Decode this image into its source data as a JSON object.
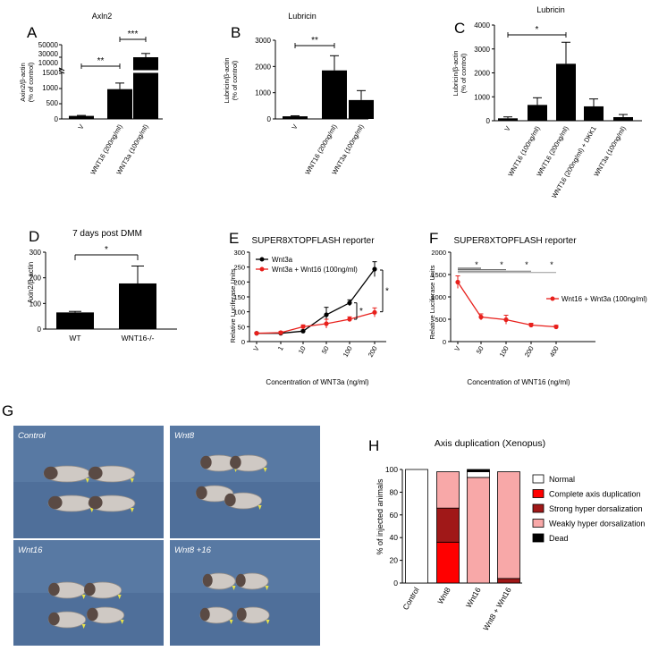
{
  "panels": {
    "A": {
      "letter": "A",
      "title": "Axln2",
      "ylabel1": "Axin2/β-actin",
      "ylabel2": "(% of control)",
      "yticks_upper": [
        "50000",
        "30000",
        "10000"
      ],
      "yticks_lower": [
        "1500",
        "1000",
        "500",
        "0"
      ],
      "categories": [
        "V",
        "WNT16 (200ng/ml)",
        "WNT3a (100ng/ml)"
      ],
      "sig": [
        "**",
        "***"
      ]
    },
    "B": {
      "letter": "B",
      "title": "Lubricin",
      "ylabel1": "Lubricin/β-actin",
      "ylabel2": "(% of control)",
      "yticks": [
        "3000",
        "2000",
        "1000",
        "0"
      ],
      "categories": [
        "V",
        "WNT16 (200ng/ml)",
        "WNT3a (100ng/ml)"
      ],
      "sig": [
        "**"
      ]
    },
    "C": {
      "letter": "C",
      "title": "Lubricin",
      "ylabel1": "Lubricin/β-actin",
      "ylabel2": "(% of control)",
      "yticks": [
        "4000",
        "3000",
        "2000",
        "1000",
        "0"
      ],
      "categories": [
        "V",
        "WNT16 (100ng/ml)",
        "WNT16 (200ng/ml)",
        "WNT16 (200ng/ml) + DKK1",
        "WNT3a (100ng/ml)"
      ],
      "sig": [
        "*"
      ]
    },
    "D": {
      "letter": "D",
      "title": "7 days post DMM",
      "ylabel": "Axin2/β-actin",
      "yticks": [
        "300",
        "200",
        "100",
        "0"
      ],
      "categories": [
        "WT",
        "WNT16-/-"
      ],
      "sig": [
        "*"
      ]
    },
    "E": {
      "letter": "E",
      "title": "SUPER8XTOPFLASH reporter",
      "ylabel": "Relative Luciferase Units",
      "xlabel": "Concentration of WNT3a (ng/ml)",
      "yticks": [
        "300",
        "250",
        "200",
        "150",
        "100",
        "50",
        "0"
      ],
      "xticks": [
        "V",
        "1",
        "10",
        "50",
        "100",
        "200"
      ],
      "legend": [
        "Wnt3a",
        "Wnt3a + Wnt16 (100ng/ml)"
      ],
      "sig": [
        "*",
        "*"
      ]
    },
    "F": {
      "letter": "F",
      "title": "SUPER8XTOPFLASH reporter",
      "ylabel": "Relative Luciferase Units",
      "xlabel": "Concentration of WNT16 (ng/ml)",
      "yticks": [
        "2000",
        "1500",
        "1000",
        "500",
        "0"
      ],
      "xticks": [
        "V",
        "50",
        "100",
        "200",
        "400"
      ],
      "legend": [
        "Wnt16 + Wnt3a (100ng/ml)"
      ],
      "sig": [
        "*",
        "*",
        "*",
        "*"
      ]
    },
    "G": {
      "letter": "G",
      "photo_labels": [
        "Control",
        "Wnt8",
        "Wnt16",
        "Wnt8 +16"
      ]
    },
    "H": {
      "letter": "H",
      "title": "Axis duplication (Xenopus)",
      "ylabel": "% of injected animals",
      "yticks": [
        "100",
        "80",
        "60",
        "40",
        "20",
        "0"
      ],
      "categories": [
        "Control",
        "Wnt8",
        "Wnt16",
        "Wnt8 + Wnt16"
      ],
      "legend": [
        "Normal",
        "Complete axis duplication",
        "Strong hyper dorsalization",
        "Weakly hyper dorsalization",
        "Dead"
      ]
    }
  },
  "colors": {
    "bar": "#000000",
    "red": "#e8201c",
    "black_series": "#000000",
    "normal": "#ffffff",
    "complete": "#ff0000",
    "strong": "#a01818",
    "weak": "#f8a8a8",
    "dead": "#000000",
    "photo_bg": "#4f6f9a"
  },
  "chart_data": [
    {
      "panel": "A",
      "type": "bar",
      "title": "Axln2",
      "ylabel": "Axin2/β-actin (% of control)",
      "categories": [
        "V",
        "WNT16 (200ng/ml)",
        "WNT3a (100ng/ml)"
      ],
      "values": [
        100,
        980,
        30000
      ],
      "errors": [
        15,
        200,
        6000
      ],
      "ylim": [
        0,
        50000
      ],
      "yaxis": "broken"
    },
    {
      "panel": "B",
      "type": "bar",
      "title": "Lubricin",
      "ylabel": "Lubricin/β-actin (% of control)",
      "categories": [
        "V",
        "WNT16 (200ng/ml)",
        "WNT3a (100ng/ml)"
      ],
      "values": [
        100,
        1850,
        720
      ],
      "errors": [
        20,
        560,
        360
      ],
      "ylim": [
        0,
        3000
      ]
    },
    {
      "panel": "C",
      "type": "bar",
      "title": "Lubricin",
      "ylabel": "Lubricin/β-actin (% of control)",
      "categories": [
        "V",
        "WNT16 (100ng/ml)",
        "WNT16 (200ng/ml)",
        "WNT16 (200ng/ml) + DKK1",
        "WNT3a (100ng/ml)"
      ],
      "values": [
        100,
        660,
        2380,
        600,
        150
      ],
      "errors": [
        60,
        300,
        900,
        310,
        110
      ],
      "ylim": [
        0,
        4000
      ]
    },
    {
      "panel": "D",
      "type": "bar",
      "title": "7 days post DMM",
      "ylabel": "Axin2/β-actin",
      "categories": [
        "WT",
        "WNT16-/-"
      ],
      "values": [
        65,
        178
      ],
      "errors": [
        4,
        68
      ],
      "ylim": [
        0,
        300
      ]
    },
    {
      "panel": "E",
      "type": "line",
      "title": "SUPER8XTOPFLASH reporter",
      "ylabel": "Relative Luciferase Units",
      "xlabel": "Concentration of WNT3a (ng/ml)",
      "x": [
        "V",
        "1",
        "10",
        "50",
        "100",
        "200"
      ],
      "ylim": [
        0,
        300
      ],
      "series": [
        {
          "name": "Wnt3a",
          "values": [
            28,
            28,
            35,
            90,
            130,
            243
          ],
          "errors": [
            3,
            3,
            4,
            25,
            10,
            25
          ]
        },
        {
          "name": "Wnt3a + Wnt16 (100ng/ml)",
          "values": [
            28,
            30,
            50,
            60,
            75,
            98
          ],
          "errors": [
            3,
            4,
            6,
            15,
            8,
            15
          ]
        }
      ]
    },
    {
      "panel": "F",
      "type": "line",
      "title": "SUPER8XTOPFLASH reporter",
      "ylabel": "Relative Luciferase Units",
      "xlabel": "Concentration of WNT16 (ng/ml)",
      "x": [
        "V",
        "50",
        "100",
        "200",
        "400"
      ],
      "ylim": [
        0,
        2000
      ],
      "series": [
        {
          "name": "Wnt16 + Wnt3a (100ng/ml)",
          "values": [
            1330,
            550,
            490,
            370,
            330
          ],
          "errors": [
            140,
            70,
            100,
            40,
            35
          ]
        }
      ]
    },
    {
      "panel": "H",
      "type": "bar",
      "stacked": true,
      "title": "Axis duplication (Xenopus)",
      "ylabel": "% of injected animals",
      "categories": [
        "Control",
        "Wnt8",
        "Wnt16",
        "Wnt8 + Wnt16"
      ],
      "ylim": [
        0,
        100
      ],
      "series": [
        {
          "name": "Complete axis duplication",
          "values": [
            0,
            36,
            0,
            0
          ]
        },
        {
          "name": "Strong hyper dorsalization",
          "values": [
            0,
            30,
            0,
            4
          ]
        },
        {
          "name": "Weakly hyper dorsalization",
          "values": [
            0,
            32,
            93,
            94
          ]
        },
        {
          "name": "Normal",
          "values": [
            100,
            0,
            5,
            0
          ]
        },
        {
          "name": "Dead",
          "values": [
            0,
            0,
            2,
            0
          ]
        }
      ]
    }
  ]
}
